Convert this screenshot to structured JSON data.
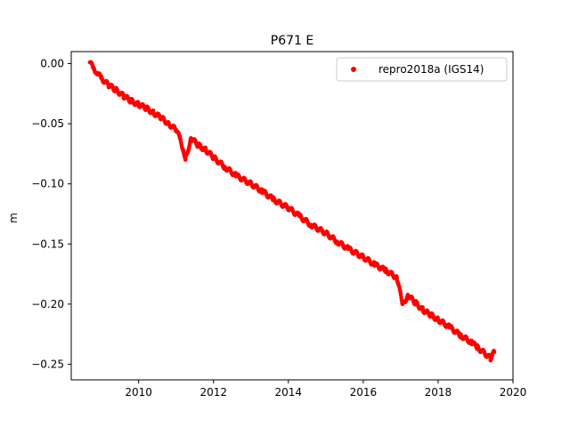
{
  "chart_data": {
    "type": "scatter",
    "title": "P671 E",
    "xlabel": "",
    "ylabel": "m",
    "xlim": [
      2008.2,
      2020.0
    ],
    "ylim": [
      -0.263,
      0.01
    ],
    "xticks": [
      2010,
      2012,
      2014,
      2016,
      2018,
      2020
    ],
    "yticks": [
      0.0,
      -0.05,
      -0.1,
      -0.15,
      -0.2,
      -0.25
    ],
    "xtick_labels": [
      "2010",
      "2012",
      "2014",
      "2016",
      "2018",
      "2020"
    ],
    "ytick_labels": [
      "0.00",
      "−0.05",
      "−0.10",
      "−0.15",
      "−0.20",
      "−0.25"
    ],
    "grid": false,
    "legend_position": "top-right",
    "series": [
      {
        "name": "repro2018a (IGS14)",
        "color": "#ff0000",
        "marker": "dot",
        "x": [
          2008.7,
          2008.8,
          2008.9,
          2009.0,
          2009.2,
          2009.4,
          2009.6,
          2009.8,
          2010.0,
          2010.2,
          2010.4,
          2010.6,
          2010.8,
          2011.0,
          2011.1,
          2011.2,
          2011.25,
          2011.4,
          2011.6,
          2011.8,
          2012.0,
          2012.3,
          2012.6,
          2013.0,
          2013.3,
          2013.6,
          2014.0,
          2014.3,
          2014.6,
          2015.0,
          2015.3,
          2015.6,
          2016.0,
          2016.3,
          2016.6,
          2016.9,
          2017.05,
          2017.2,
          2017.4,
          2017.6,
          2017.8,
          2018.0,
          2018.3,
          2018.6,
          2018.9,
          2019.05,
          2019.4,
          2019.5
        ],
        "y": [
          0.001,
          -0.004,
          -0.008,
          -0.012,
          -0.018,
          -0.022,
          -0.027,
          -0.031,
          -0.034,
          -0.037,
          -0.041,
          -0.045,
          -0.05,
          -0.055,
          -0.062,
          -0.072,
          -0.08,
          -0.062,
          -0.068,
          -0.072,
          -0.078,
          -0.086,
          -0.093,
          -0.1,
          -0.106,
          -0.113,
          -0.12,
          -0.127,
          -0.134,
          -0.141,
          -0.148,
          -0.154,
          -0.161,
          -0.167,
          -0.172,
          -0.178,
          -0.2,
          -0.193,
          -0.199,
          -0.205,
          -0.209,
          -0.213,
          -0.219,
          -0.226,
          -0.232,
          -0.236,
          -0.245,
          -0.24
        ]
      }
    ]
  }
}
